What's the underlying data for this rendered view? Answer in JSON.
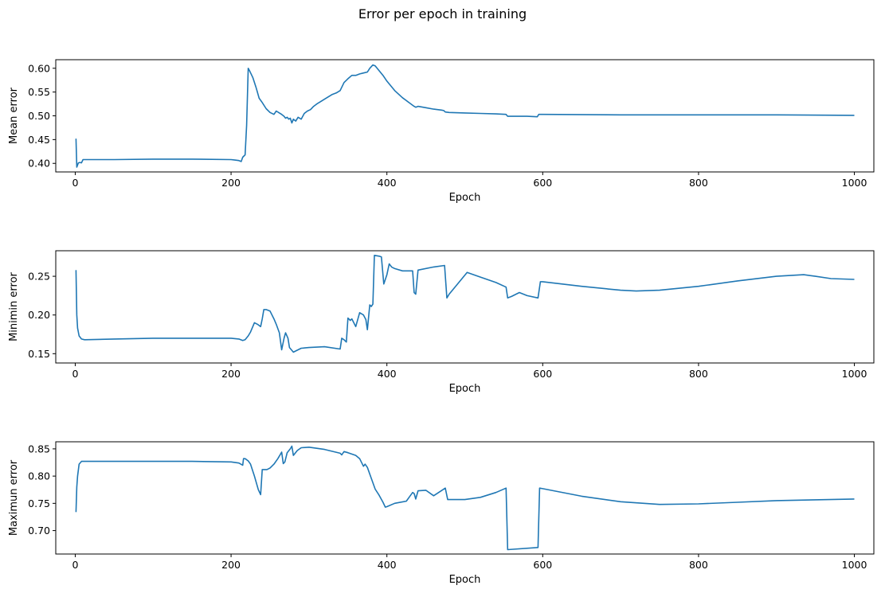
{
  "figure": {
    "title": "Error per epoch in training"
  },
  "chart_data": [
    {
      "type": "line",
      "xlabel": "Epoch",
      "ylabel": "Mean error",
      "xlim": [
        -25,
        1025
      ],
      "ylim": [
        0.382,
        0.618
      ],
      "xticks": [
        0,
        200,
        400,
        600,
        800,
        1000
      ],
      "yticks": [
        0.4,
        0.45,
        0.5,
        0.55,
        0.6
      ],
      "ytick_decimals": 2,
      "grid": false,
      "series": [
        {
          "color": "#1f77b4",
          "x": [
            1,
            2,
            4,
            6,
            8,
            10,
            50,
            100,
            150,
            200,
            205,
            210,
            213,
            215,
            218,
            220,
            222,
            224,
            228,
            232,
            236,
            240,
            245,
            250,
            255,
            258,
            262,
            265,
            268,
            270,
            272,
            274,
            276,
            278,
            280,
            283,
            286,
            290,
            294,
            298,
            302,
            306,
            310,
            315,
            320,
            325,
            330,
            335,
            340,
            345,
            350,
            355,
            360,
            365,
            370,
            375,
            378,
            382,
            385,
            390,
            395,
            400,
            410,
            420,
            430,
            435,
            437,
            440,
            450,
            460,
            470,
            473,
            475,
            480,
            500,
            520,
            540,
            553,
            555,
            560,
            580,
            593,
            595,
            600,
            700,
            800,
            900,
            1000
          ],
          "y": [
            0.452,
            0.392,
            0.401,
            0.402,
            0.401,
            0.408,
            0.408,
            0.409,
            0.409,
            0.408,
            0.407,
            0.406,
            0.404,
            0.413,
            0.418,
            0.48,
            0.6,
            0.594,
            0.58,
            0.56,
            0.537,
            0.528,
            0.515,
            0.507,
            0.503,
            0.51,
            0.506,
            0.503,
            0.499,
            0.495,
            0.497,
            0.493,
            0.495,
            0.485,
            0.493,
            0.489,
            0.497,
            0.493,
            0.505,
            0.51,
            0.513,
            0.52,
            0.525,
            0.53,
            0.535,
            0.54,
            0.545,
            0.548,
            0.553,
            0.57,
            0.578,
            0.585,
            0.585,
            0.588,
            0.59,
            0.592,
            0.6,
            0.607,
            0.605,
            0.595,
            0.585,
            0.573,
            0.553,
            0.538,
            0.526,
            0.52,
            0.518,
            0.52,
            0.517,
            0.514,
            0.512,
            0.511,
            0.508,
            0.507,
            0.506,
            0.505,
            0.504,
            0.503,
            0.499,
            0.499,
            0.499,
            0.498,
            0.503,
            0.503,
            0.502,
            0.502,
            0.502,
            0.501
          ]
        }
      ]
    },
    {
      "type": "line",
      "xlabel": "Epoch",
      "ylabel": "Minimin error",
      "xlim": [
        -25,
        1025
      ],
      "ylim": [
        0.138,
        0.283
      ],
      "xticks": [
        0,
        200,
        400,
        600,
        800,
        1000
      ],
      "yticks": [
        0.15,
        0.2,
        0.25
      ],
      "ytick_decimals": 2,
      "grid": false,
      "series": [
        {
          "color": "#1f77b4",
          "x": [
            1,
            2,
            3,
            5,
            8,
            12,
            50,
            100,
            150,
            200,
            210,
            215,
            218,
            222,
            225,
            230,
            234,
            238,
            240,
            242,
            245,
            250,
            255,
            258,
            262,
            265,
            268,
            270,
            273,
            275,
            280,
            290,
            300,
            320,
            340,
            342,
            345,
            348,
            350,
            353,
            355,
            360,
            365,
            370,
            373,
            375,
            378,
            380,
            382,
            384,
            390,
            393,
            396,
            400,
            403,
            406,
            410,
            420,
            433,
            435,
            437,
            440,
            460,
            474,
            477,
            480,
            503,
            520,
            540,
            553,
            555,
            560,
            570,
            580,
            594,
            597,
            600,
            650,
            700,
            720,
            750,
            800,
            850,
            900,
            935,
            950,
            970,
            1000
          ],
          "y": [
            0.258,
            0.2,
            0.183,
            0.173,
            0.169,
            0.168,
            0.169,
            0.17,
            0.17,
            0.17,
            0.169,
            0.167,
            0.168,
            0.173,
            0.178,
            0.19,
            0.188,
            0.185,
            0.195,
            0.207,
            0.207,
            0.205,
            0.195,
            0.188,
            0.177,
            0.155,
            0.17,
            0.177,
            0.17,
            0.158,
            0.152,
            0.157,
            0.158,
            0.159,
            0.156,
            0.17,
            0.168,
            0.165,
            0.196,
            0.193,
            0.195,
            0.185,
            0.203,
            0.2,
            0.194,
            0.181,
            0.213,
            0.211,
            0.214,
            0.277,
            0.276,
            0.275,
            0.24,
            0.252,
            0.266,
            0.262,
            0.26,
            0.257,
            0.257,
            0.229,
            0.227,
            0.258,
            0.262,
            0.264,
            0.222,
            0.227,
            0.255,
            0.249,
            0.242,
            0.236,
            0.222,
            0.224,
            0.229,
            0.225,
            0.222,
            0.243,
            0.243,
            0.237,
            0.232,
            0.231,
            0.232,
            0.237,
            0.244,
            0.25,
            0.252,
            0.25,
            0.247,
            0.246
          ]
        }
      ]
    },
    {
      "type": "line",
      "xlabel": "Epoch",
      "ylabel": "Maximun error",
      "xlim": [
        -25,
        1025
      ],
      "ylim": [
        0.657,
        0.863
      ],
      "xticks": [
        0,
        200,
        400,
        600,
        800,
        1000
      ],
      "yticks": [
        0.7,
        0.75,
        0.8,
        0.85
      ],
      "ytick_decimals": 2,
      "grid": false,
      "series": [
        {
          "color": "#1f77b4",
          "x": [
            1,
            2,
            3,
            5,
            8,
            12,
            50,
            100,
            150,
            200,
            210,
            215,
            216,
            218,
            222,
            225,
            230,
            235,
            238,
            240,
            242,
            246,
            250,
            255,
            260,
            265,
            267,
            269,
            272,
            276,
            278,
            280,
            285,
            290,
            300,
            320,
            340,
            342,
            345,
            350,
            360,
            365,
            370,
            372,
            375,
            380,
            385,
            390,
            395,
            398,
            400,
            410,
            425,
            430,
            433,
            435,
            437,
            440,
            450,
            460,
            475,
            478,
            480,
            500,
            520,
            540,
            553,
            555,
            594,
            596,
            600,
            650,
            700,
            750,
            800,
            850,
            900,
            1000
          ],
          "y": [
            0.734,
            0.78,
            0.8,
            0.822,
            0.827,
            0.827,
            0.827,
            0.827,
            0.827,
            0.826,
            0.824,
            0.82,
            0.832,
            0.832,
            0.828,
            0.822,
            0.8,
            0.775,
            0.766,
            0.812,
            0.812,
            0.812,
            0.815,
            0.822,
            0.832,
            0.844,
            0.823,
            0.826,
            0.843,
            0.85,
            0.855,
            0.838,
            0.847,
            0.852,
            0.853,
            0.849,
            0.842,
            0.839,
            0.845,
            0.843,
            0.838,
            0.832,
            0.818,
            0.822,
            0.816,
            0.796,
            0.776,
            0.765,
            0.752,
            0.743,
            0.744,
            0.75,
            0.754,
            0.764,
            0.77,
            0.768,
            0.758,
            0.773,
            0.774,
            0.764,
            0.778,
            0.757,
            0.757,
            0.757,
            0.761,
            0.77,
            0.778,
            0.665,
            0.669,
            0.778,
            0.777,
            0.763,
            0.753,
            0.748,
            0.749,
            0.752,
            0.755,
            0.758
          ]
        }
      ]
    }
  ]
}
